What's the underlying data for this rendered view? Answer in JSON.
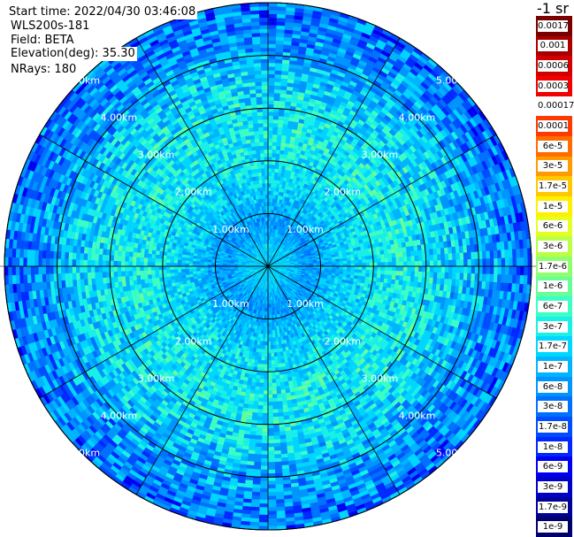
{
  "header": {
    "start_time": "Start time: 2022/04/30 03:46:08",
    "radar": "WLS200s-181",
    "field": "Field: BETA",
    "elevation": "Elevation(deg): 35.30",
    "nrays": "NRays: 180"
  },
  "colorbar": {
    "unit": "-1 sr",
    "items": [
      {
        "label": "0.0017",
        "color": "#7a0000"
      },
      {
        "label": "0.001",
        "color": "#a80000"
      },
      {
        "label": "0.0006",
        "color": "#d00000"
      },
      {
        "label": "0.0003",
        "color": "#f20000"
      },
      {
        "label": "0.00017",
        "color": "#ffffff"
      },
      {
        "label": "0.0001",
        "color": "#ff3a00"
      },
      {
        "label": "6e-5",
        "color": "#ff6c00"
      },
      {
        "label": "3e-5",
        "color": "#ff9a00"
      },
      {
        "label": "1.7e-5",
        "color": "#ffc800"
      },
      {
        "label": "1e-5",
        "color": "#fff000"
      },
      {
        "label": "6e-6",
        "color": "#e6ff22"
      },
      {
        "label": "3e-6",
        "color": "#baff46"
      },
      {
        "label": "1.7e-6",
        "color": "#8fff6e"
      },
      {
        "label": "1e-6",
        "color": "#66ff99"
      },
      {
        "label": "6e-7",
        "color": "#3dffc4"
      },
      {
        "label": "3e-7",
        "color": "#1af0e6"
      },
      {
        "label": "1.7e-7",
        "color": "#00d6ff"
      },
      {
        "label": "1e-7",
        "color": "#00b4ff"
      },
      {
        "label": "6e-8",
        "color": "#0094ff"
      },
      {
        "label": "3e-8",
        "color": "#0070ff"
      },
      {
        "label": "1.7e-8",
        "color": "#004cff"
      },
      {
        "label": "1e-8",
        "color": "#0028ff"
      },
      {
        "label": "6e-9",
        "color": "#0000f0"
      },
      {
        "label": "3e-9",
        "color": "#0000c8"
      },
      {
        "label": "1.7e-9",
        "color": "#00009a"
      },
      {
        "label": "1e-9",
        "color": "#00006a"
      }
    ]
  },
  "chart_data": {
    "type": "heatmap",
    "projection": "polar",
    "field": "BETA",
    "range_rings_km": [
      1.0,
      2.0,
      3.0,
      4.0,
      5.0
    ],
    "range_max_km": 5.0,
    "spoke_angles_deg": [
      0,
      30,
      60,
      90,
      120,
      150,
      180,
      210,
      240,
      270,
      300,
      330
    ],
    "ring_labels": [
      "1.00km",
      "2.00km",
      "3.00km",
      "4.00km",
      "5.00km"
    ],
    "range_profile": [
      {
        "range_km": 0.3,
        "value": 1.7e-07
      },
      {
        "range_km": 0.8,
        "value": 6e-08
      },
      {
        "range_km": 1.5,
        "value": 1.7e-07
      },
      {
        "range_km": 2.5,
        "value": 3e-07
      },
      {
        "range_km": 3.5,
        "value": 1.7e-07
      },
      {
        "range_km": 4.2,
        "value": 6e-08
      },
      {
        "range_km": 5.0,
        "value": 3e-08
      }
    ]
  }
}
